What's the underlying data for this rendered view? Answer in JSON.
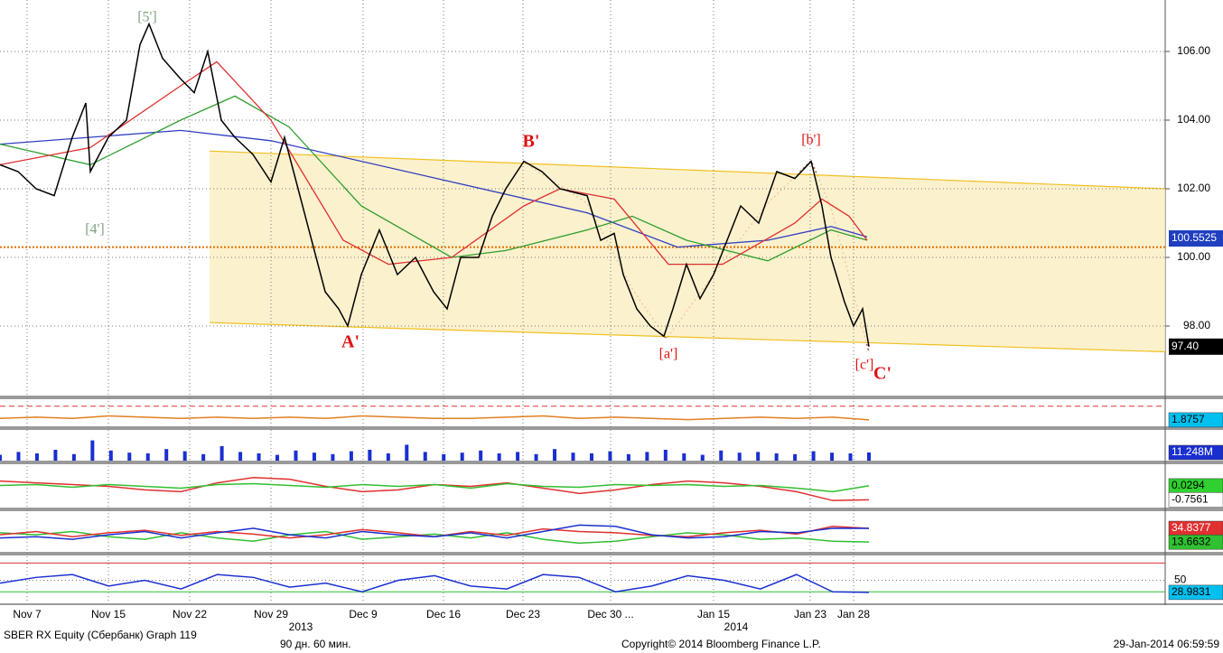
{
  "chart_data": {
    "type": "line",
    "xlim": [
      0,
      1290
    ],
    "ylim": [
      96.0,
      107.5
    ],
    "xticks": [
      {
        "value": 30,
        "label": "Nov 7"
      },
      {
        "value": 120,
        "label": "Nov 15"
      },
      {
        "value": 210,
        "label": "Nov 22"
      },
      {
        "value": 300,
        "label": "Nov 29"
      },
      {
        "value": 402,
        "label": "Dec 9"
      },
      {
        "value": 491,
        "label": "Dec 16"
      },
      {
        "value": 579,
        "label": "Dec 23"
      },
      {
        "value": 676,
        "label": "Dec 30 ..."
      },
      {
        "value": 790,
        "label": "Jan 15"
      },
      {
        "value": 897,
        "label": "Jan 23"
      },
      {
        "value": 945,
        "label": "Jan 28"
      }
    ],
    "year_ticks": [
      {
        "value": 333,
        "label": "2013"
      },
      {
        "value": 815,
        "label": "2014"
      }
    ],
    "yticks": [
      {
        "value": 98,
        "label": "98.00"
      },
      {
        "value": 100,
        "label": "100.00"
      },
      {
        "value": 102,
        "label": "102.00"
      },
      {
        "value": 104,
        "label": "104.00"
      },
      {
        "value": 106,
        "label": "106.00"
      }
    ],
    "grid": true,
    "series": [
      {
        "color": "#000000",
        "x": [
          0,
          20,
          40,
          60,
          80,
          95,
          100,
          120,
          140,
          155,
          165,
          180,
          200,
          215,
          230,
          245,
          260,
          280,
          300,
          315,
          330,
          345,
          360,
          375,
          385,
          400,
          420,
          440,
          460,
          480,
          495,
          510,
          530,
          545,
          560,
          580,
          600,
          620,
          650,
          665,
          680,
          690,
          705,
          720,
          735,
          745,
          760,
          775,
          790,
          805,
          820,
          840,
          860,
          880,
          898,
          910,
          920,
          935,
          945,
          955,
          962
        ],
        "values": [
          102.7,
          102.5,
          102.0,
          101.8,
          103.5,
          104.5,
          102.5,
          103.5,
          104.0,
          106.2,
          106.8,
          105.8,
          105.2,
          104.8,
          106.0,
          104.0,
          103.5,
          103.0,
          102.2,
          103.5,
          102.0,
          100.5,
          99.0,
          98.5,
          98.0,
          99.5,
          100.8,
          99.5,
          100.0,
          99.0,
          98.5,
          100.0,
          100.0,
          101.2,
          102.0,
          102.8,
          102.5,
          102.0,
          101.8,
          100.5,
          100.7,
          99.5,
          98.5,
          98.0,
          97.7,
          98.5,
          99.8,
          98.8,
          99.5,
          100.5,
          101.5,
          101.0,
          102.5,
          102.3,
          102.8,
          101.5,
          100.0,
          98.7,
          98.0,
          98.5,
          97.4
        ]
      },
      {
        "color": "#e03030",
        "x": [
          0,
          100,
          200,
          240,
          300,
          380,
          430,
          500,
          580,
          620,
          680,
          740,
          800,
          880,
          910,
          940,
          960
        ],
        "values": [
          102.7,
          103.2,
          105.0,
          105.7,
          104.0,
          100.5,
          99.8,
          100.0,
          101.5,
          102.0,
          101.7,
          99.8,
          99.8,
          101.0,
          101.7,
          101.2,
          100.5
        ]
      },
      {
        "color": "#2e9e2e",
        "x": [
          0,
          100,
          200,
          260,
          320,
          400,
          500,
          560,
          650,
          700,
          760,
          850,
          920,
          960
        ],
        "values": [
          103.3,
          102.7,
          104.0,
          104.7,
          103.8,
          101.5,
          100.0,
          100.2,
          100.8,
          101.2,
          100.5,
          99.9,
          100.8,
          100.5
        ]
      },
      {
        "color": "#3040c0",
        "x": [
          0,
          200,
          300,
          500,
          650,
          750,
          850,
          920,
          960
        ],
        "values": [
          103.3,
          103.7,
          103.4,
          102.2,
          101.3,
          100.3,
          100.5,
          100.9,
          100.6
        ]
      }
    ],
    "channel": {
      "upper": {
        "x": [
          232,
          1290
        ],
        "values": [
          103.1,
          102.0
        ]
      },
      "lower": {
        "x": [
          232,
          1290
        ],
        "values": [
          98.1,
          97.25
        ]
      }
    },
    "hline": {
      "value": 100.3,
      "color": "#e07000"
    },
    "price_tags": [
      {
        "value": 100.5525,
        "label": "100.5525",
        "color": "#1f3fbf"
      },
      {
        "value": 97.4,
        "label": "97.40",
        "color": "#000000"
      }
    ],
    "annotations": [
      {
        "text": "[5']",
        "color": "#80a080"
      },
      {
        "text": "[4']",
        "color": "#80a080"
      },
      {
        "text": "A'",
        "color": "#e01010"
      },
      {
        "text": "B'",
        "color": "#e01010"
      },
      {
        "text": "[a']",
        "color": "#e01010"
      },
      {
        "text": "[b']",
        "color": "#e01010"
      },
      {
        "text": "[c']",
        "color": "#e01010"
      },
      {
        "text": "C'",
        "color": "#e01010"
      }
    ],
    "panels": [
      {
        "kind": "line",
        "ylim": [
          1.5,
          3.5
        ],
        "hlines": [
          {
            "value": 3.0,
            "color": "#e03030"
          }
        ],
        "series": [
          {
            "color": "#e08020",
            "values": [
              2.0,
              2.1,
              2.0,
              2.2,
              2.1,
              2.0,
              2.1,
              2.0,
              2.1,
              2.0,
              2.2,
              2.1,
              2.0,
              2.0,
              2.1,
              2.2,
              2.0,
              2.1,
              2.0,
              1.9,
              2.0,
              2.1,
              2.0,
              2.1,
              1.88
            ]
          }
        ],
        "tags": [
          {
            "value": 1.8757,
            "label": "1.8757",
            "color": "#00c0f0"
          }
        ]
      },
      {
        "kind": "bar",
        "ylim": [
          0,
          40
        ],
        "hlines": [],
        "series": [
          {
            "color": "#1a2fd0",
            "values": [
              8,
              12,
              10,
              15,
              9,
              28,
              14,
              11,
              10,
              16,
              13,
              9,
              20,
              12,
              10,
              8,
              14,
              11,
              9,
              13,
              15,
              10,
              22,
              12,
              9,
              11,
              14,
              10,
              12,
              9,
              16,
              11,
              10,
              13,
              9,
              12,
              15,
              10,
              8,
              14,
              11,
              12,
              10,
              9,
              13,
              11,
              10,
              11.248
            ]
          }
        ],
        "tags": [
          {
            "value": 11.248,
            "label": "11.248M",
            "color": "#1a2fd0"
          }
        ]
      },
      {
        "kind": "line",
        "ylim": [
          -1.2,
          1.2
        ],
        "hlines": [],
        "series": [
          {
            "color": "#e03030",
            "values": [
              0.3,
              0.2,
              0.1,
              0.0,
              -0.2,
              -0.3,
              0.2,
              0.5,
              0.4,
              0.0,
              -0.3,
              -0.2,
              0.1,
              0.0,
              0.2,
              -0.1,
              -0.4,
              -0.2,
              0.1,
              0.3,
              0.2,
              0.0,
              -0.3,
              -0.8,
              -0.76
            ]
          },
          {
            "color": "#30c030",
            "values": [
              0.05,
              0.1,
              -0.05,
              0.1,
              0.0,
              -0.1,
              0.1,
              0.15,
              0.05,
              -0.05,
              0.1,
              0.0,
              0.1,
              -0.1,
              0.15,
              0.0,
              -0.05,
              0.1,
              0.05,
              0.1,
              0.0,
              0.05,
              -0.1,
              -0.3,
              0.03
            ]
          }
        ],
        "tags": [
          {
            "value": 0.0294,
            "label": "0.0294",
            "color": "#30d030"
          },
          {
            "value": -0.7561,
            "label": "-0.7561",
            "color": "#ffffff"
          }
        ]
      },
      {
        "kind": "line",
        "ylim": [
          0,
          60
        ],
        "hlines": [],
        "series": [
          {
            "color": "#30c030",
            "values": [
              28,
              25,
              30,
              22,
              18,
              28,
              20,
              15,
              25,
              30,
              18,
              22,
              26,
              20,
              28,
              18,
              12,
              15,
              22,
              28,
              25,
              18,
              20,
              15,
              13.7
            ]
          },
          {
            "color": "#e03030",
            "values": [
              25,
              30,
              22,
              28,
              32,
              24,
              30,
              26,
              20,
              25,
              33,
              28,
              22,
              30,
              24,
              34,
              30,
              28,
              24,
              22,
              28,
              32,
              26,
              38,
              34.8
            ]
          },
          {
            "color": "#1a2fd0",
            "values": [
              20,
              22,
              18,
              25,
              30,
              20,
              28,
              35,
              25,
              20,
              30,
              25,
              22,
              28,
              20,
              30,
              40,
              38,
              25,
              20,
              22,
              30,
              28,
              35,
              34.8
            ]
          }
        ],
        "tags": [
          {
            "value": 34.8377,
            "label": "34.8377",
            "color": "#e03030"
          },
          {
            "value": 13.6632,
            "label": "13.6632",
            "color": "#30c030"
          }
        ]
      },
      {
        "kind": "line",
        "ylim": [
          10,
          90
        ],
        "yticks": [
          50
        ],
        "hlines": [
          {
            "value": 80,
            "color": "#e03030"
          },
          {
            "value": 30,
            "color": "#30c030"
          }
        ],
        "series": [
          {
            "color": "#1a2fd0",
            "values": [
              45,
              55,
              60,
              40,
              50,
              35,
              60,
              55,
              38,
              45,
              30,
              50,
              58,
              40,
              35,
              60,
              55,
              30,
              40,
              58,
              50,
              35,
              60,
              30,
              29
            ]
          }
        ],
        "tags": [
          {
            "value": 28.9831,
            "label": "28.9831",
            "color": "#00c0f0"
          }
        ]
      }
    ],
    "footer": {
      "security": "SBER RX Equity (Сбербанк) Graph 119",
      "period": "90 дн. 60 мин.",
      "copyright": "Copyright© 2014 Bloomberg Finance L.P.",
      "timestamp": "29-Jan-2014 06:59:59"
    }
  }
}
